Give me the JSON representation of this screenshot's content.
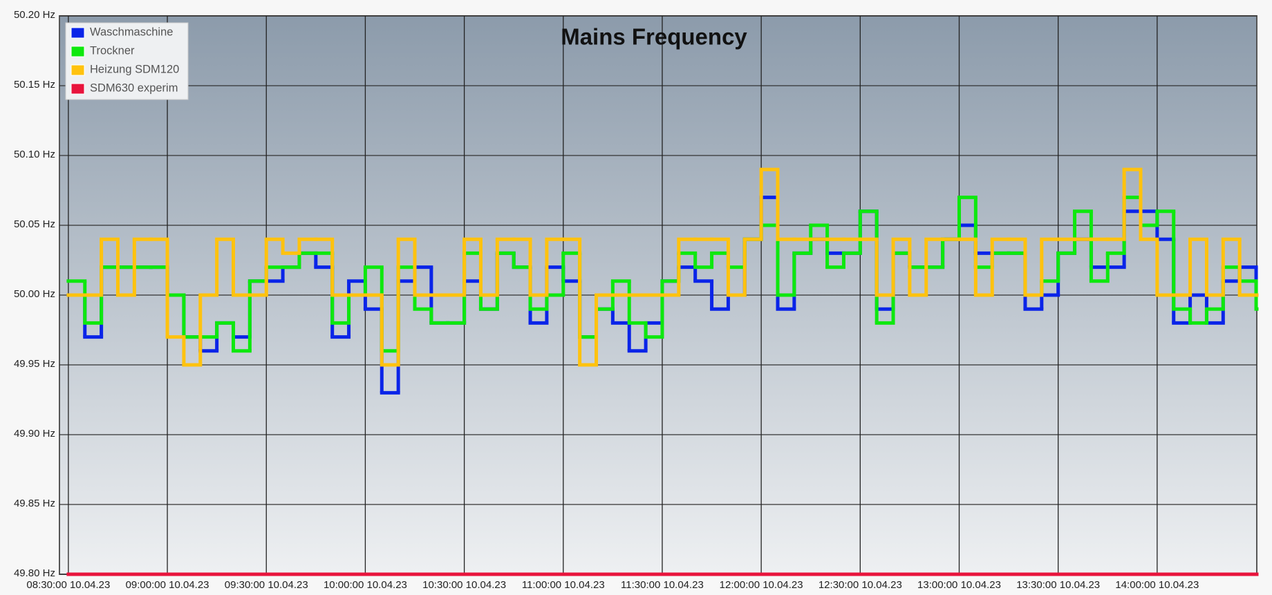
{
  "chart_data": {
    "type": "step-line",
    "title": "Mains Frequency",
    "x": [
      "2023-04-10T08:30:00",
      "2023-04-10T08:35:00",
      "2023-04-10T08:40:00",
      "2023-04-10T08:45:00",
      "2023-04-10T08:50:00",
      "2023-04-10T08:55:00",
      "2023-04-10T09:00:00",
      "2023-04-10T09:05:00",
      "2023-04-10T09:10:00",
      "2023-04-10T09:15:00",
      "2023-04-10T09:20:00",
      "2023-04-10T09:25:00",
      "2023-04-10T09:30:00",
      "2023-04-10T09:35:00",
      "2023-04-10T09:40:00",
      "2023-04-10T09:45:00",
      "2023-04-10T09:50:00",
      "2023-04-10T09:55:00",
      "2023-04-10T10:00:00",
      "2023-04-10T10:05:00",
      "2023-04-10T10:10:00",
      "2023-04-10T10:15:00",
      "2023-04-10T10:20:00",
      "2023-04-10T10:25:00",
      "2023-04-10T10:30:00",
      "2023-04-10T10:35:00",
      "2023-04-10T10:40:00",
      "2023-04-10T10:45:00",
      "2023-04-10T10:50:00",
      "2023-04-10T10:55:00",
      "2023-04-10T11:00:00",
      "2023-04-10T11:05:00",
      "2023-04-10T11:10:00",
      "2023-04-10T11:15:00",
      "2023-04-10T11:20:00",
      "2023-04-10T11:25:00",
      "2023-04-10T11:30:00",
      "2023-04-10T11:35:00",
      "2023-04-10T11:40:00",
      "2023-04-10T11:45:00",
      "2023-04-10T11:50:00",
      "2023-04-10T11:55:00",
      "2023-04-10T12:00:00",
      "2023-04-10T12:05:00",
      "2023-04-10T12:10:00",
      "2023-04-10T12:15:00",
      "2023-04-10T12:20:00",
      "2023-04-10T12:25:00",
      "2023-04-10T12:30:00",
      "2023-04-10T12:35:00",
      "2023-04-10T12:40:00",
      "2023-04-10T12:45:00",
      "2023-04-10T12:50:00",
      "2023-04-10T12:55:00",
      "2023-04-10T13:00:00",
      "2023-04-10T13:05:00",
      "2023-04-10T13:10:00",
      "2023-04-10T13:15:00",
      "2023-04-10T13:20:00",
      "2023-04-10T13:25:00",
      "2023-04-10T13:30:00",
      "2023-04-10T13:35:00",
      "2023-04-10T13:40:00",
      "2023-04-10T13:45:00",
      "2023-04-10T13:50:00",
      "2023-04-10T13:55:00",
      "2023-04-10T14:00:00",
      "2023-04-10T14:05:00",
      "2023-04-10T14:10:00",
      "2023-04-10T14:15:00",
      "2023-04-10T14:20:00",
      "2023-04-10T14:25:00",
      "2023-04-10T14:30:00"
    ],
    "series": [
      {
        "name": "Waschmaschine",
        "color": "#0a24e8",
        "values": [
          50.0,
          49.97,
          50.02,
          50.02,
          50.02,
          50.02,
          50.0,
          49.97,
          49.96,
          49.98,
          49.97,
          50.01,
          50.01,
          50.02,
          50.03,
          50.02,
          49.97,
          50.01,
          49.99,
          49.93,
          50.01,
          50.02,
          49.98,
          49.98,
          50.01,
          49.99,
          50.03,
          50.02,
          49.98,
          50.02,
          50.01,
          49.97,
          49.99,
          49.98,
          49.96,
          49.98,
          50.01,
          50.02,
          50.01,
          49.99,
          50.0,
          50.04,
          50.07,
          49.99,
          50.03,
          50.04,
          50.03,
          50.03,
          50.06,
          49.99,
          50.03,
          50.02,
          50.02,
          50.04,
          50.05,
          50.03,
          50.03,
          50.03,
          49.99,
          50.0,
          50.03,
          50.04,
          50.02,
          50.02,
          50.06,
          50.06,
          50.04,
          49.98,
          50.0,
          49.98,
          50.01,
          50.02,
          50.0
        ]
      },
      {
        "name": "Trockner",
        "color": "#0ee80e",
        "values": [
          50.01,
          49.98,
          50.02,
          50.02,
          50.02,
          50.02,
          50.0,
          49.97,
          49.97,
          49.98,
          49.96,
          50.01,
          50.02,
          50.02,
          50.03,
          50.03,
          49.98,
          50.0,
          50.02,
          49.96,
          50.02,
          49.99,
          49.98,
          49.98,
          50.03,
          49.99,
          50.03,
          50.02,
          49.99,
          50.0,
          50.03,
          49.97,
          49.99,
          50.01,
          49.98,
          49.97,
          50.01,
          50.03,
          50.02,
          50.03,
          50.02,
          50.04,
          50.05,
          50.0,
          50.03,
          50.05,
          50.02,
          50.03,
          50.06,
          49.98,
          50.03,
          50.02,
          50.02,
          50.04,
          50.07,
          50.02,
          50.03,
          50.03,
          50.0,
          50.01,
          50.03,
          50.06,
          50.01,
          50.03,
          50.07,
          50.05,
          50.06,
          49.99,
          49.98,
          49.99,
          50.02,
          50.01,
          49.99
        ]
      },
      {
        "name": "Heizung SDM120",
        "color": "#ffc20e",
        "values": [
          50.0,
          50.0,
          50.04,
          50.0,
          50.04,
          50.04,
          49.97,
          49.95,
          50.0,
          50.04,
          50.0,
          50.0,
          50.04,
          50.03,
          50.04,
          50.04,
          50.0,
          50.0,
          50.0,
          49.95,
          50.04,
          50.0,
          50.0,
          50.0,
          50.04,
          50.0,
          50.04,
          50.04,
          50.0,
          50.04,
          50.04,
          49.95,
          50.0,
          50.0,
          50.0,
          50.0,
          50.0,
          50.04,
          50.04,
          50.04,
          50.0,
          50.04,
          50.09,
          50.04,
          50.04,
          50.04,
          50.04,
          50.04,
          50.04,
          50.0,
          50.04,
          50.0,
          50.04,
          50.04,
          50.04,
          50.0,
          50.04,
          50.04,
          50.0,
          50.04,
          50.04,
          50.04,
          50.04,
          50.04,
          50.09,
          50.04,
          50.0,
          50.0,
          50.04,
          50.0,
          50.04,
          50.0,
          50.0
        ]
      },
      {
        "name": "SDM630 experim",
        "color": "#e8143c",
        "values": [
          49.8,
          49.8,
          49.8,
          49.8,
          49.8,
          49.8,
          49.8,
          49.8,
          49.8,
          49.8,
          49.8,
          49.8,
          49.8,
          49.8,
          49.8,
          49.8,
          49.8,
          49.8,
          49.8,
          49.8,
          49.8,
          49.8,
          49.8,
          49.8,
          49.8,
          49.8,
          49.8,
          49.8,
          49.8,
          49.8,
          49.8,
          49.8,
          49.8,
          49.8,
          49.8,
          49.8,
          49.8,
          49.8,
          49.8,
          49.8,
          49.8,
          49.8,
          49.8,
          49.8,
          49.8,
          49.8,
          49.8,
          49.8,
          49.8,
          49.8,
          49.8,
          49.8,
          49.8,
          49.8,
          49.8,
          49.8,
          49.8,
          49.8,
          49.8,
          49.8,
          49.8,
          49.8,
          49.8,
          49.8,
          49.8,
          49.8,
          49.8,
          49.8,
          49.8,
          49.8,
          49.8,
          49.8,
          49.8
        ]
      }
    ],
    "xlim": [
      "2023-04-10T08:27:18",
      "2023-04-10T14:30:12"
    ],
    "xticks": [
      {
        "value": "2023-04-10T08:30:00",
        "label": "08:30:00 10.04.23"
      },
      {
        "value": "2023-04-10T09:00:00",
        "label": "09:00:00 10.04.23"
      },
      {
        "value": "2023-04-10T09:30:00",
        "label": "09:30:00 10.04.23"
      },
      {
        "value": "2023-04-10T10:00:00",
        "label": "10:00:00 10.04.23"
      },
      {
        "value": "2023-04-10T10:30:00",
        "label": "10:30:00 10.04.23"
      },
      {
        "value": "2023-04-10T11:00:00",
        "label": "11:00:00 10.04.23"
      },
      {
        "value": "2023-04-10T11:30:00",
        "label": "11:30:00 10.04.23"
      },
      {
        "value": "2023-04-10T12:00:00",
        "label": "12:00:00 10.04.23"
      },
      {
        "value": "2023-04-10T12:30:00",
        "label": "12:30:00 10.04.23"
      },
      {
        "value": "2023-04-10T13:00:00",
        "label": "13:00:00 10.04.23"
      },
      {
        "value": "2023-04-10T13:30:00",
        "label": "13:30:00 10.04.23"
      },
      {
        "value": "2023-04-10T14:00:00",
        "label": "14:00:00 10.04.23"
      }
    ],
    "ylim": [
      49.8,
      50.2
    ],
    "yticks": [
      {
        "value": 49.8,
        "label": "49.80 Hz"
      },
      {
        "value": 49.85,
        "label": "49.85 Hz"
      },
      {
        "value": 49.9,
        "label": "49.90 Hz"
      },
      {
        "value": 49.95,
        "label": "49.95 Hz"
      },
      {
        "value": 50.0,
        "label": "50.00 Hz"
      },
      {
        "value": 50.05,
        "label": "50.05 Hz"
      },
      {
        "value": 50.1,
        "label": "50.10 Hz"
      },
      {
        "value": 50.15,
        "label": "50.15 Hz"
      },
      {
        "value": 50.2,
        "label": "50.20 Hz"
      }
    ],
    "grid": true,
    "legend": "top-left"
  }
}
